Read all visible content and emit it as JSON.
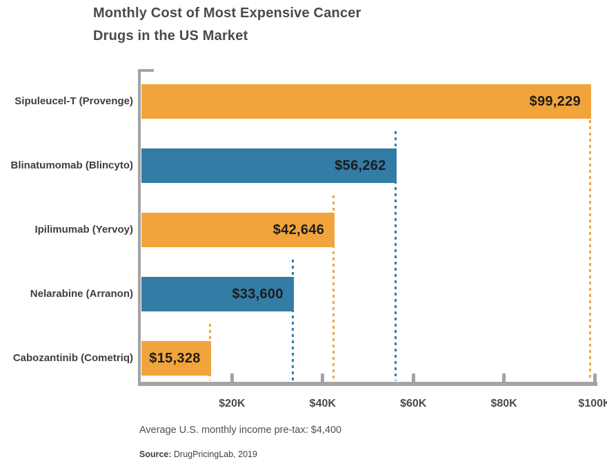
{
  "title": {
    "line1": "Monthly Cost of Most Expensive Cancer",
    "line2": "Drugs in the US Market"
  },
  "chart_data": {
    "type": "bar",
    "orientation": "horizontal",
    "title": "Monthly Cost of Most Expensive Cancer Drugs in the US Market",
    "categories": [
      "Sipuleucel-T (Provenge)",
      "Blinatumomab (Blincyto)",
      "Ipilimumab (Yervoy)",
      "Nelarabine (Arranon)",
      "Cabozantinib (Cometriq)"
    ],
    "values": [
      99229,
      56262,
      42646,
      33600,
      15328
    ],
    "bars": [
      {
        "label": "Sipuleucel-T (Provenge)",
        "value": 99229,
        "value_label": "$99,229",
        "color": "#F2A43C"
      },
      {
        "label": "Blinatumomab (Blincyto)",
        "value": 56262,
        "value_label": "$56,262",
        "color": "#337CA6"
      },
      {
        "label": "Ipilimumab (Yervoy)",
        "value": 42646,
        "value_label": "$42,646",
        "color": "#F2A43C"
      },
      {
        "label": "Nelarabine (Arranon)",
        "value": 33600,
        "value_label": "$33,600",
        "color": "#337CA6"
      },
      {
        "label": "Cabozantinib (Cometriq)",
        "value": 15328,
        "value_label": "$15,328",
        "color": "#F2A43C"
      }
    ],
    "xlim": [
      0,
      100000
    ],
    "x_ticks": [
      {
        "value": 20000,
        "label": "$20K"
      },
      {
        "value": 40000,
        "label": "$40K"
      },
      {
        "value": 60000,
        "label": "$60K"
      },
      {
        "value": 80000,
        "label": "$80K"
      },
      {
        "value": 100000,
        "label": "$100K"
      }
    ],
    "legend": "none",
    "grid": "dotted guide line from each bar end down to x-axis, colored like the bar",
    "colors": {
      "orange": "#F2A43C",
      "blue": "#337CA6",
      "axis": "#A3A3A3",
      "value_text": "#1C1C1C"
    }
  },
  "note": "Average U.S. monthly income pre-tax: $4,400",
  "source": {
    "label": "Source:",
    "text": " DrugPricingLab, 2019"
  }
}
